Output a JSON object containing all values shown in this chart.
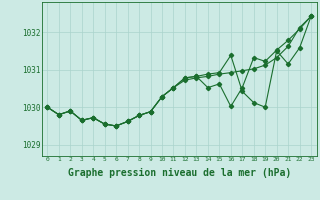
{
  "background_color": "#cceae4",
  "grid_color": "#aad4cc",
  "line_color": "#1a6e2e",
  "xlabel": "Graphe pression niveau de la mer (hPa)",
  "xlabel_fontsize": 7,
  "ylim": [
    1028.7,
    1032.8
  ],
  "xlim": [
    -0.5,
    23.5
  ],
  "yticks": [
    1029,
    1030,
    1031,
    1032
  ],
  "xticks": [
    0,
    1,
    2,
    3,
    4,
    5,
    6,
    7,
    8,
    9,
    10,
    11,
    12,
    13,
    14,
    15,
    16,
    17,
    18,
    19,
    20,
    21,
    22,
    23
  ],
  "series1": [
    1030.0,
    1029.8,
    1029.9,
    1029.65,
    1029.72,
    1029.55,
    1029.5,
    1029.62,
    1029.78,
    1029.88,
    1030.28,
    1030.52,
    1030.72,
    1030.78,
    1030.82,
    1030.88,
    1030.92,
    1030.97,
    1031.02,
    1031.12,
    1031.32,
    1031.62,
    1032.12,
    1032.42
  ],
  "series2": [
    1030.0,
    1029.8,
    1029.9,
    1029.65,
    1029.72,
    1029.55,
    1029.5,
    1029.62,
    1029.78,
    1029.88,
    1030.28,
    1030.52,
    1030.78,
    1030.82,
    1030.88,
    1030.92,
    1031.38,
    1030.42,
    1030.12,
    1030.0,
    1031.5,
    1031.15,
    1031.58,
    1032.42
  ],
  "series3": [
    1030.0,
    1029.8,
    1029.9,
    1029.65,
    1029.72,
    1029.55,
    1029.5,
    1029.62,
    1029.78,
    1029.88,
    1030.28,
    1030.52,
    1030.78,
    1030.82,
    1030.52,
    1030.62,
    1030.02,
    1030.52,
    1031.32,
    1031.22,
    1031.52,
    1031.78,
    1032.08,
    1032.42
  ]
}
